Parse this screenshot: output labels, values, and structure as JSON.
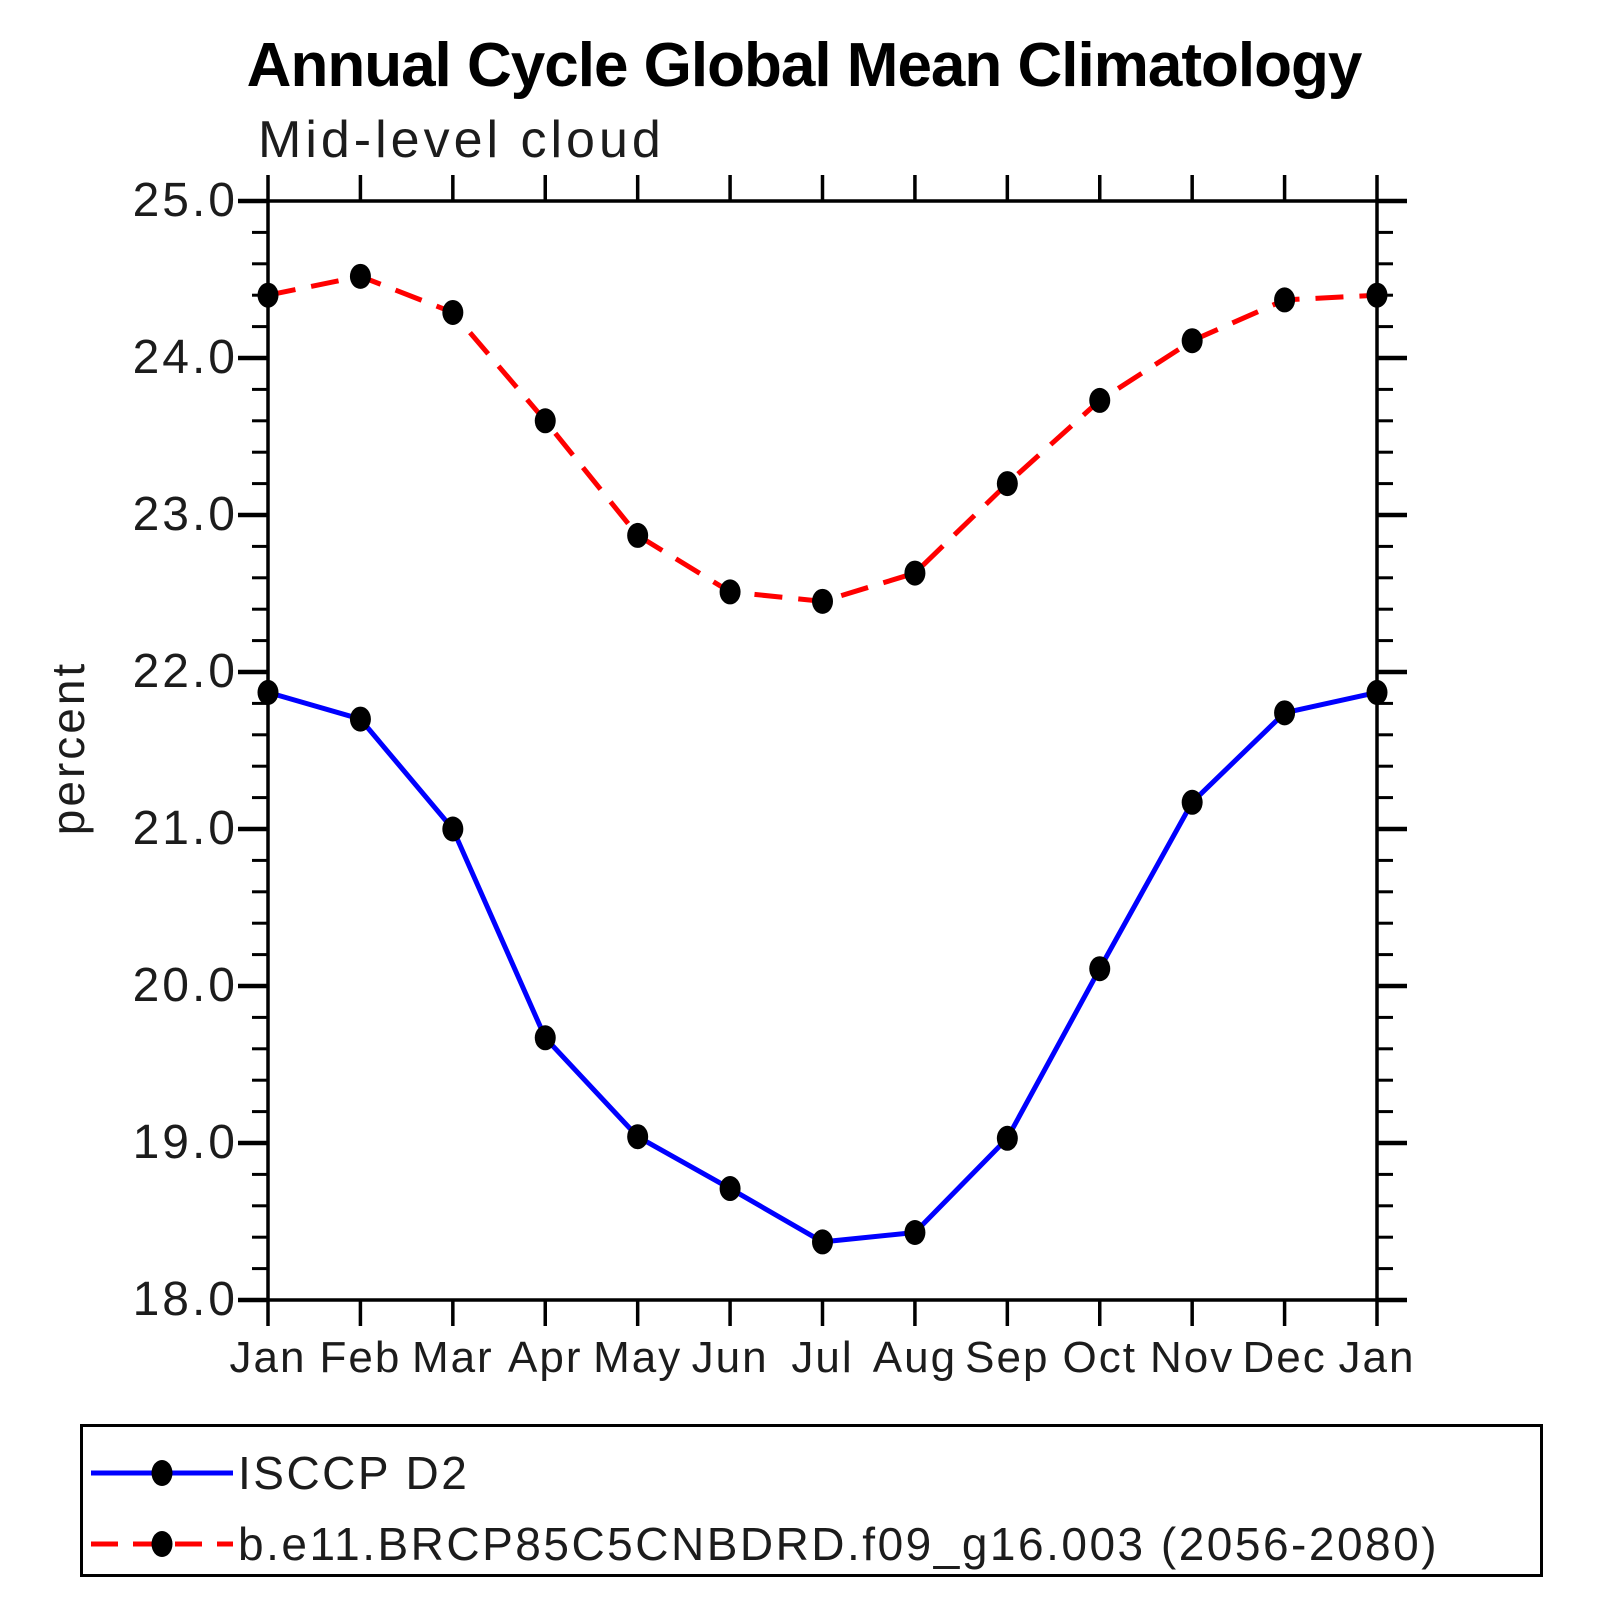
{
  "page": {
    "background": "#FFFFFF"
  },
  "chart_data": {
    "type": "line",
    "title": "Annual Cycle Global Mean Climatology",
    "subtitle": "Mid-level cloud",
    "ylabel": "percent",
    "xlabel": "",
    "x_categories": [
      "Jan",
      "Feb",
      "Mar",
      "Apr",
      "May",
      "Jun",
      "Jul",
      "Aug",
      "Sep",
      "Oct",
      "Nov",
      "Dec",
      "Jan"
    ],
    "ylim": [
      18.0,
      25.0
    ],
    "y_major_step": 1.0,
    "y_minor_step": 0.2,
    "grid": false,
    "legend_position": "bottom-left-box",
    "axis_color": "#000000",
    "marker_color": "#000000",
    "series": [
      {
        "name": "ISCCP D2",
        "color": "#0000FF",
        "line_style": "solid",
        "marker": "filled-circle",
        "values": [
          21.87,
          21.7,
          21.0,
          19.67,
          19.04,
          18.71,
          18.37,
          18.43,
          19.03,
          20.11,
          21.17,
          21.74,
          21.87
        ]
      },
      {
        "name": "b.e11.BRCP85C5CNBDRD.f09_g16.003 (2056-2080)",
        "color": "#FF0000",
        "line_style": "dashed",
        "marker": "filled-circle",
        "values": [
          24.4,
          24.52,
          24.29,
          23.6,
          22.87,
          22.51,
          22.45,
          22.63,
          23.2,
          23.73,
          24.11,
          24.37,
          24.4
        ]
      }
    ]
  }
}
